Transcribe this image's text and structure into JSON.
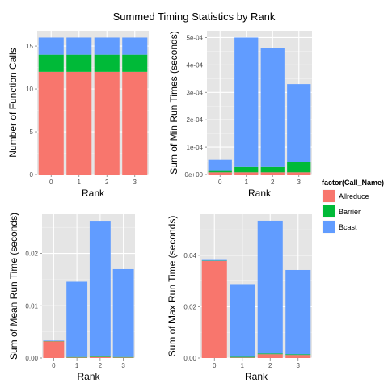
{
  "title": "Summed Timing Statistics by Rank",
  "colors": {
    "Allreduce": "#f8766d",
    "Barrier": "#00ba38",
    "Bcast": "#619cff"
  },
  "legend": {
    "title": "factor(Call_Name)",
    "items": [
      "Allreduce",
      "Barrier",
      "Bcast"
    ]
  },
  "chart_data": [
    {
      "type": "bar",
      "stacked": true,
      "xlabel": "Rank",
      "ylabel": "Number of Function Calls",
      "categories": [
        "0",
        "1",
        "2",
        "3"
      ],
      "ylim": [
        0,
        16.8
      ],
      "yticks": [
        0,
        5,
        10,
        15
      ],
      "ytick_labels": [
        "0",
        "5",
        "10",
        "15"
      ],
      "series": [
        {
          "name": "Allreduce",
          "values": [
            12,
            12,
            12,
            12
          ]
        },
        {
          "name": "Barrier",
          "values": [
            2,
            2,
            2,
            2
          ]
        },
        {
          "name": "Bcast",
          "values": [
            2,
            2,
            2,
            2
          ]
        }
      ]
    },
    {
      "type": "bar",
      "stacked": true,
      "xlabel": "Rank",
      "ylabel": "Sum of Min Run Times (seconds)",
      "categories": [
        "0",
        "1",
        "2",
        "3"
      ],
      "ylim": [
        0,
        0.000525
      ],
      "yticks": [
        0,
        0.0001,
        0.0002,
        0.0003,
        0.0004,
        0.0005
      ],
      "ytick_labels": [
        "0e+00",
        "1e-04",
        "2e-04",
        "3e-04",
        "4e-04",
        "5e-04"
      ],
      "series": [
        {
          "name": "Allreduce",
          "values": [
            8e-06,
            8e-06,
            8e-06,
            8e-06
          ]
        },
        {
          "name": "Barrier",
          "values": [
            8e-06,
            2.2e-05,
            2.2e-05,
            3.7e-05
          ]
        },
        {
          "name": "Bcast",
          "values": [
            3.8e-05,
            0.00047,
            0.000432,
            0.000285
          ]
        }
      ]
    },
    {
      "type": "bar",
      "stacked": true,
      "xlabel": "Rank",
      "ylabel": "Sum of Mean Run Time (seconds)",
      "categories": [
        "0",
        "1",
        "2",
        "3"
      ],
      "ylim": [
        0,
        0.0275
      ],
      "yticks": [
        0,
        0.01,
        0.02
      ],
      "ytick_labels": [
        "0.00",
        "0.01",
        "0.02"
      ],
      "series": [
        {
          "name": "Allreduce",
          "values": [
            0.0032,
            0.0001,
            0.0002,
            0.0001
          ]
        },
        {
          "name": "Barrier",
          "values": [
            5e-05,
            0.0001,
            0.0001,
            0.0001
          ]
        },
        {
          "name": "Bcast",
          "values": [
            0.0001,
            0.0144,
            0.0258,
            0.0168
          ]
        }
      ]
    },
    {
      "type": "bar",
      "stacked": true,
      "xlabel": "Rank",
      "ylabel": "Sum of Max Run Time (seconds)",
      "categories": [
        "0",
        "1",
        "2",
        "3"
      ],
      "ylim": [
        0,
        0.056
      ],
      "yticks": [
        0,
        0.02,
        0.04
      ],
      "ytick_labels": [
        "0.00",
        "0.02",
        "0.04"
      ],
      "series": [
        {
          "name": "Allreduce",
          "values": [
            0.0378,
            0.0002,
            0.0015,
            0.0012
          ]
        },
        {
          "name": "Barrier",
          "values": [
            0.0001,
            0.0003,
            0.0003,
            0.0003
          ]
        },
        {
          "name": "Bcast",
          "values": [
            0.0003,
            0.0283,
            0.0517,
            0.0328
          ]
        }
      ]
    }
  ]
}
